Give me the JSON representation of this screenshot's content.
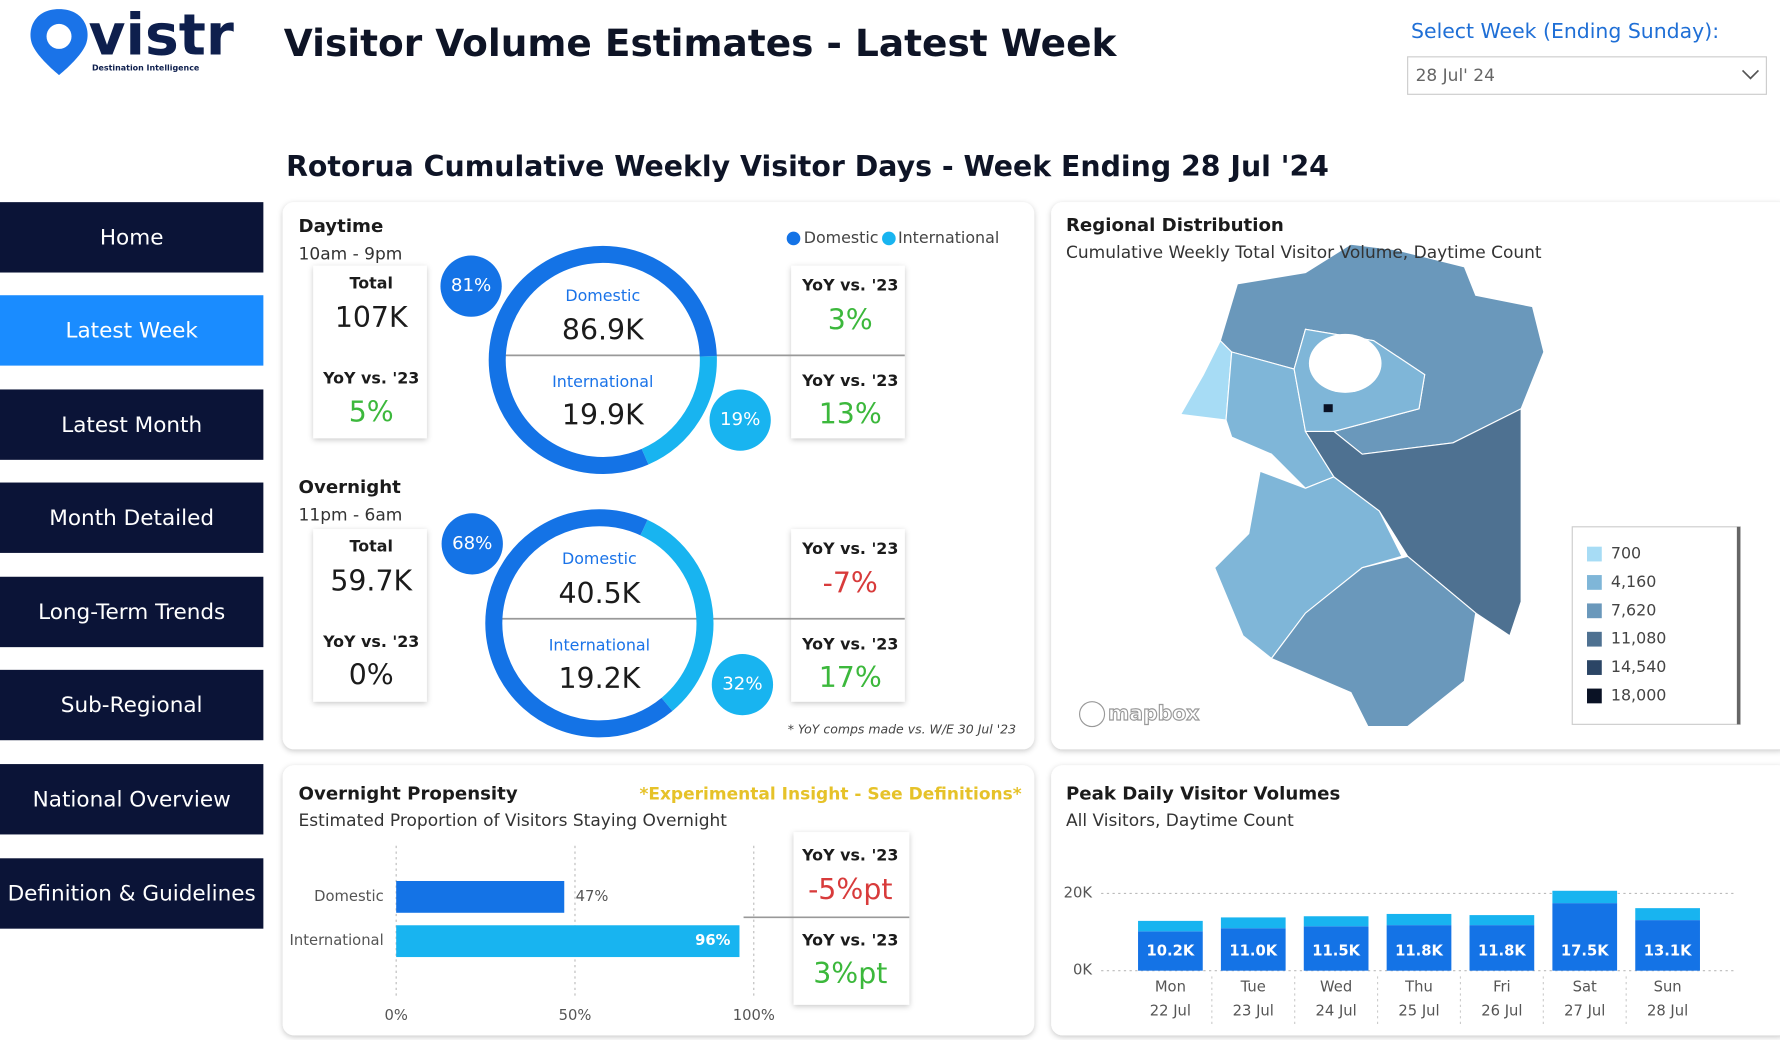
{
  "header": {
    "logo": "vistr",
    "logo_tagline": "Destination Intelligence",
    "title": "Visitor Volume Estimates - Latest Week",
    "week_select_label": "Select Week (Ending Sunday):",
    "week_selected": "28 Jul' 24"
  },
  "nav": {
    "items": [
      "Home",
      "Latest Week",
      "Latest Month",
      "Month Detailed",
      "Long-Term Trends",
      "Sub-Regional",
      "National Overview",
      "Definition & Guidelines"
    ],
    "active": 1
  },
  "section_title": "Rotorua Cumulative Weekly Visitor Days - Week Ending 28 Jul '24",
  "legend": [
    {
      "name": "Domestic",
      "color": "#1473e6"
    },
    {
      "name": "International",
      "color": "#18b4f0"
    }
  ],
  "daytime": {
    "title": "Daytime",
    "subtitle": "10am - 9pm",
    "total_label": "Total",
    "total": "107K",
    "yoy_label": "YoY vs. '23",
    "total_yoy": "5%",
    "domestic_label": "Domestic",
    "domestic": "86.9K",
    "international_label": "International",
    "international": "19.9K",
    "domestic_yoy": "3%",
    "international_yoy": "13%",
    "donut": {
      "values": [
        81,
        19
      ],
      "value_labels": [
        "81%",
        "19%"
      ]
    }
  },
  "overnight": {
    "title": "Overnight",
    "subtitle": "11pm - 6am",
    "total_label": "Total",
    "total": "59.7K",
    "yoy_label": "YoY vs. '23",
    "total_yoy": "0%",
    "domestic_label": "Domestic",
    "domestic": "40.5K",
    "international_label": "International",
    "international": "19.2K",
    "domestic_yoy": "-7%",
    "international_yoy": "17%",
    "donut": {
      "values": [
        68,
        32
      ],
      "value_labels": [
        "68%",
        "32%"
      ]
    }
  },
  "footnote": "* YoY comps made vs. W/E 30 Jul '23",
  "map": {
    "title": "Regional Distribution",
    "subtitle": "Cumulative Weekly Total Visitor Volume, Daytime Count",
    "legend": [
      "700",
      "4,160",
      "7,620",
      "11,080",
      "14,540",
      "18,000"
    ],
    "legend_colors": [
      "#a7dcf5",
      "#7fb6d8",
      "#6a98bb",
      "#4e7191",
      "#2b4565",
      "#0a1225"
    ],
    "attribution": "mapbox"
  },
  "propensity": {
    "title": "Overnight Propensity",
    "subtitle": "Estimated Proportion of Visitors Staying Overnight",
    "note": "*Experimental Insight - See Definitions*",
    "chart_data": {
      "type": "hbar",
      "categories": [
        "Domestic",
        "International"
      ],
      "values": [
        47,
        96
      ],
      "value_labels": [
        "47%",
        "96%"
      ],
      "colors": [
        "#1473e6",
        "#18b4f0"
      ],
      "xlim": [
        0,
        100
      ],
      "xticks": [
        {
          "value": 0,
          "label": "0%"
        },
        {
          "value": 50,
          "label": "50%"
        },
        {
          "value": 100,
          "label": "100%"
        }
      ],
      "grid": true
    },
    "yoy": [
      {
        "label": "YoY vs. '23",
        "value": "-5%pt"
      },
      {
        "label": "YoY vs. '23",
        "value": "3%pt"
      }
    ]
  },
  "peak": {
    "title": "Peak Daily Visitor Volumes",
    "subtitle": "All Visitors, Daytime Count",
    "chart_data": {
      "type": "stacked_bar",
      "categories": [
        "Mon",
        "Tue",
        "Wed",
        "Thu",
        "Fri",
        "Sat",
        "Sun"
      ],
      "dates": [
        "22 Jul",
        "23 Jul",
        "24 Jul",
        "25 Jul",
        "26 Jul",
        "27 Jul",
        "28 Jul"
      ],
      "series": [
        {
          "color": "#1473e6",
          "values": [
            10200,
            11000,
            11500,
            11800,
            11800,
            17500,
            13100
          ],
          "value_labels": [
            "10.2K",
            "11.0K",
            "11.5K",
            "11.8K",
            "11.8K",
            "17.5K",
            "13.1K"
          ]
        },
        {
          "color": "#18b4f0",
          "values": [
            2700,
            2800,
            2600,
            2900,
            2600,
            3200,
            3100
          ]
        }
      ],
      "ylim": [
        0,
        22000
      ],
      "yticks": [
        {
          "value": 0,
          "label": "0K"
        },
        {
          "value": 20000,
          "label": "20K"
        }
      ],
      "grid": true
    }
  }
}
